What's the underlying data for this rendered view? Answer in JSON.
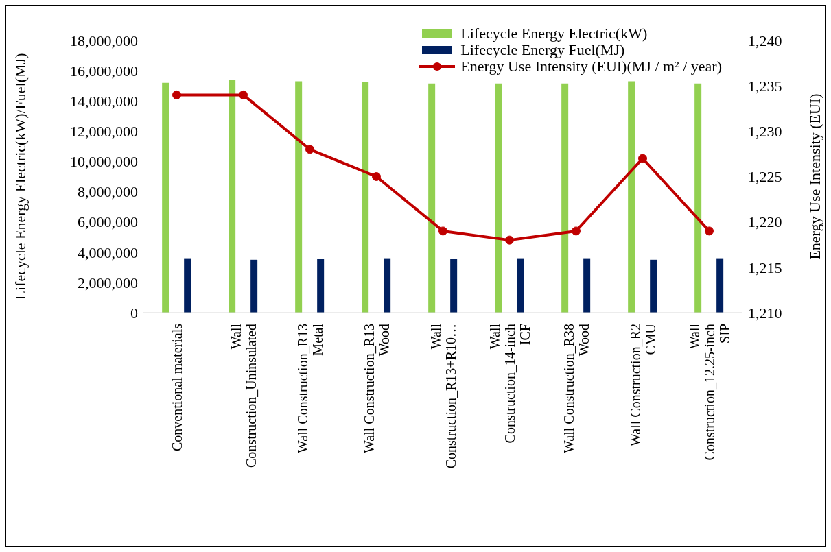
{
  "chart_data": {
    "type": "bar",
    "categories": [
      "Conventional materials",
      "Wall Construction_Uninsulated",
      "Wall Construction_R13 Metal",
      "Wall Construction_R13 Wood",
      "Wall Construction_R13+R10…",
      "Wall Construction_14-inch ICF",
      "Wall Construction_R38 Wood",
      "Wall Construction_R2 CMU",
      "Wall Construction_12.25-inch SIP"
    ],
    "series": [
      {
        "name": "Lifecycle Energy Electric(kW)",
        "color": "#92d050",
        "values": [
          15200000,
          15400000,
          15300000,
          15250000,
          15150000,
          15150000,
          15150000,
          15300000,
          15150000
        ]
      },
      {
        "name": "Lifecycle Energy Fuel(MJ)",
        "color": "#002060",
        "values": [
          3600000,
          3500000,
          3550000,
          3600000,
          3550000,
          3600000,
          3600000,
          3500000,
          3600000
        ]
      },
      {
        "name": "Energy Use Intensity (EUI)(MJ / m² / year)",
        "type": "line",
        "axis": "y2",
        "color": "#c00000",
        "values": [
          1234,
          1234,
          1228,
          1225,
          1219,
          1218,
          1219,
          1227,
          1219
        ]
      }
    ],
    "ylabel": "Lifecycle Energy Electric(kW)/Fuel(MJ)",
    "y2label": "Energy Use Intensity (EUI)",
    "ylim": [
      0,
      18000000
    ],
    "yticks": [
      0,
      {
        "value": 2000000,
        "label": "2,000,000"
      },
      {
        "value": 4000000,
        "label": "4,000,000"
      },
      {
        "value": 6000000,
        "label": "6,000,000"
      },
      {
        "value": 8000000,
        "label": "8,000,000"
      },
      {
        "value": 10000000,
        "label": "10,000,000"
      },
      {
        "value": 12000000,
        "label": "12,000,000"
      },
      {
        "value": 14000000,
        "label": "14,000,000"
      },
      {
        "value": 16000000,
        "label": "16,000,000"
      },
      {
        "value": 18000000,
        "label": "18,000,000"
      }
    ],
    "y2lim": [
      1210,
      1240
    ],
    "y2ticks": [
      {
        "value": 1210,
        "label": "1,210"
      },
      {
        "value": 1215,
        "label": "1,215"
      },
      {
        "value": 1220,
        "label": "1,220"
      },
      {
        "value": 1225,
        "label": "1,225"
      },
      {
        "value": 1230,
        "label": "1,230"
      },
      {
        "value": 1235,
        "label": "1,235"
      },
      {
        "value": 1240,
        "label": "1,240"
      }
    ],
    "grid": false,
    "legend": "top right",
    "marker": "circle"
  }
}
